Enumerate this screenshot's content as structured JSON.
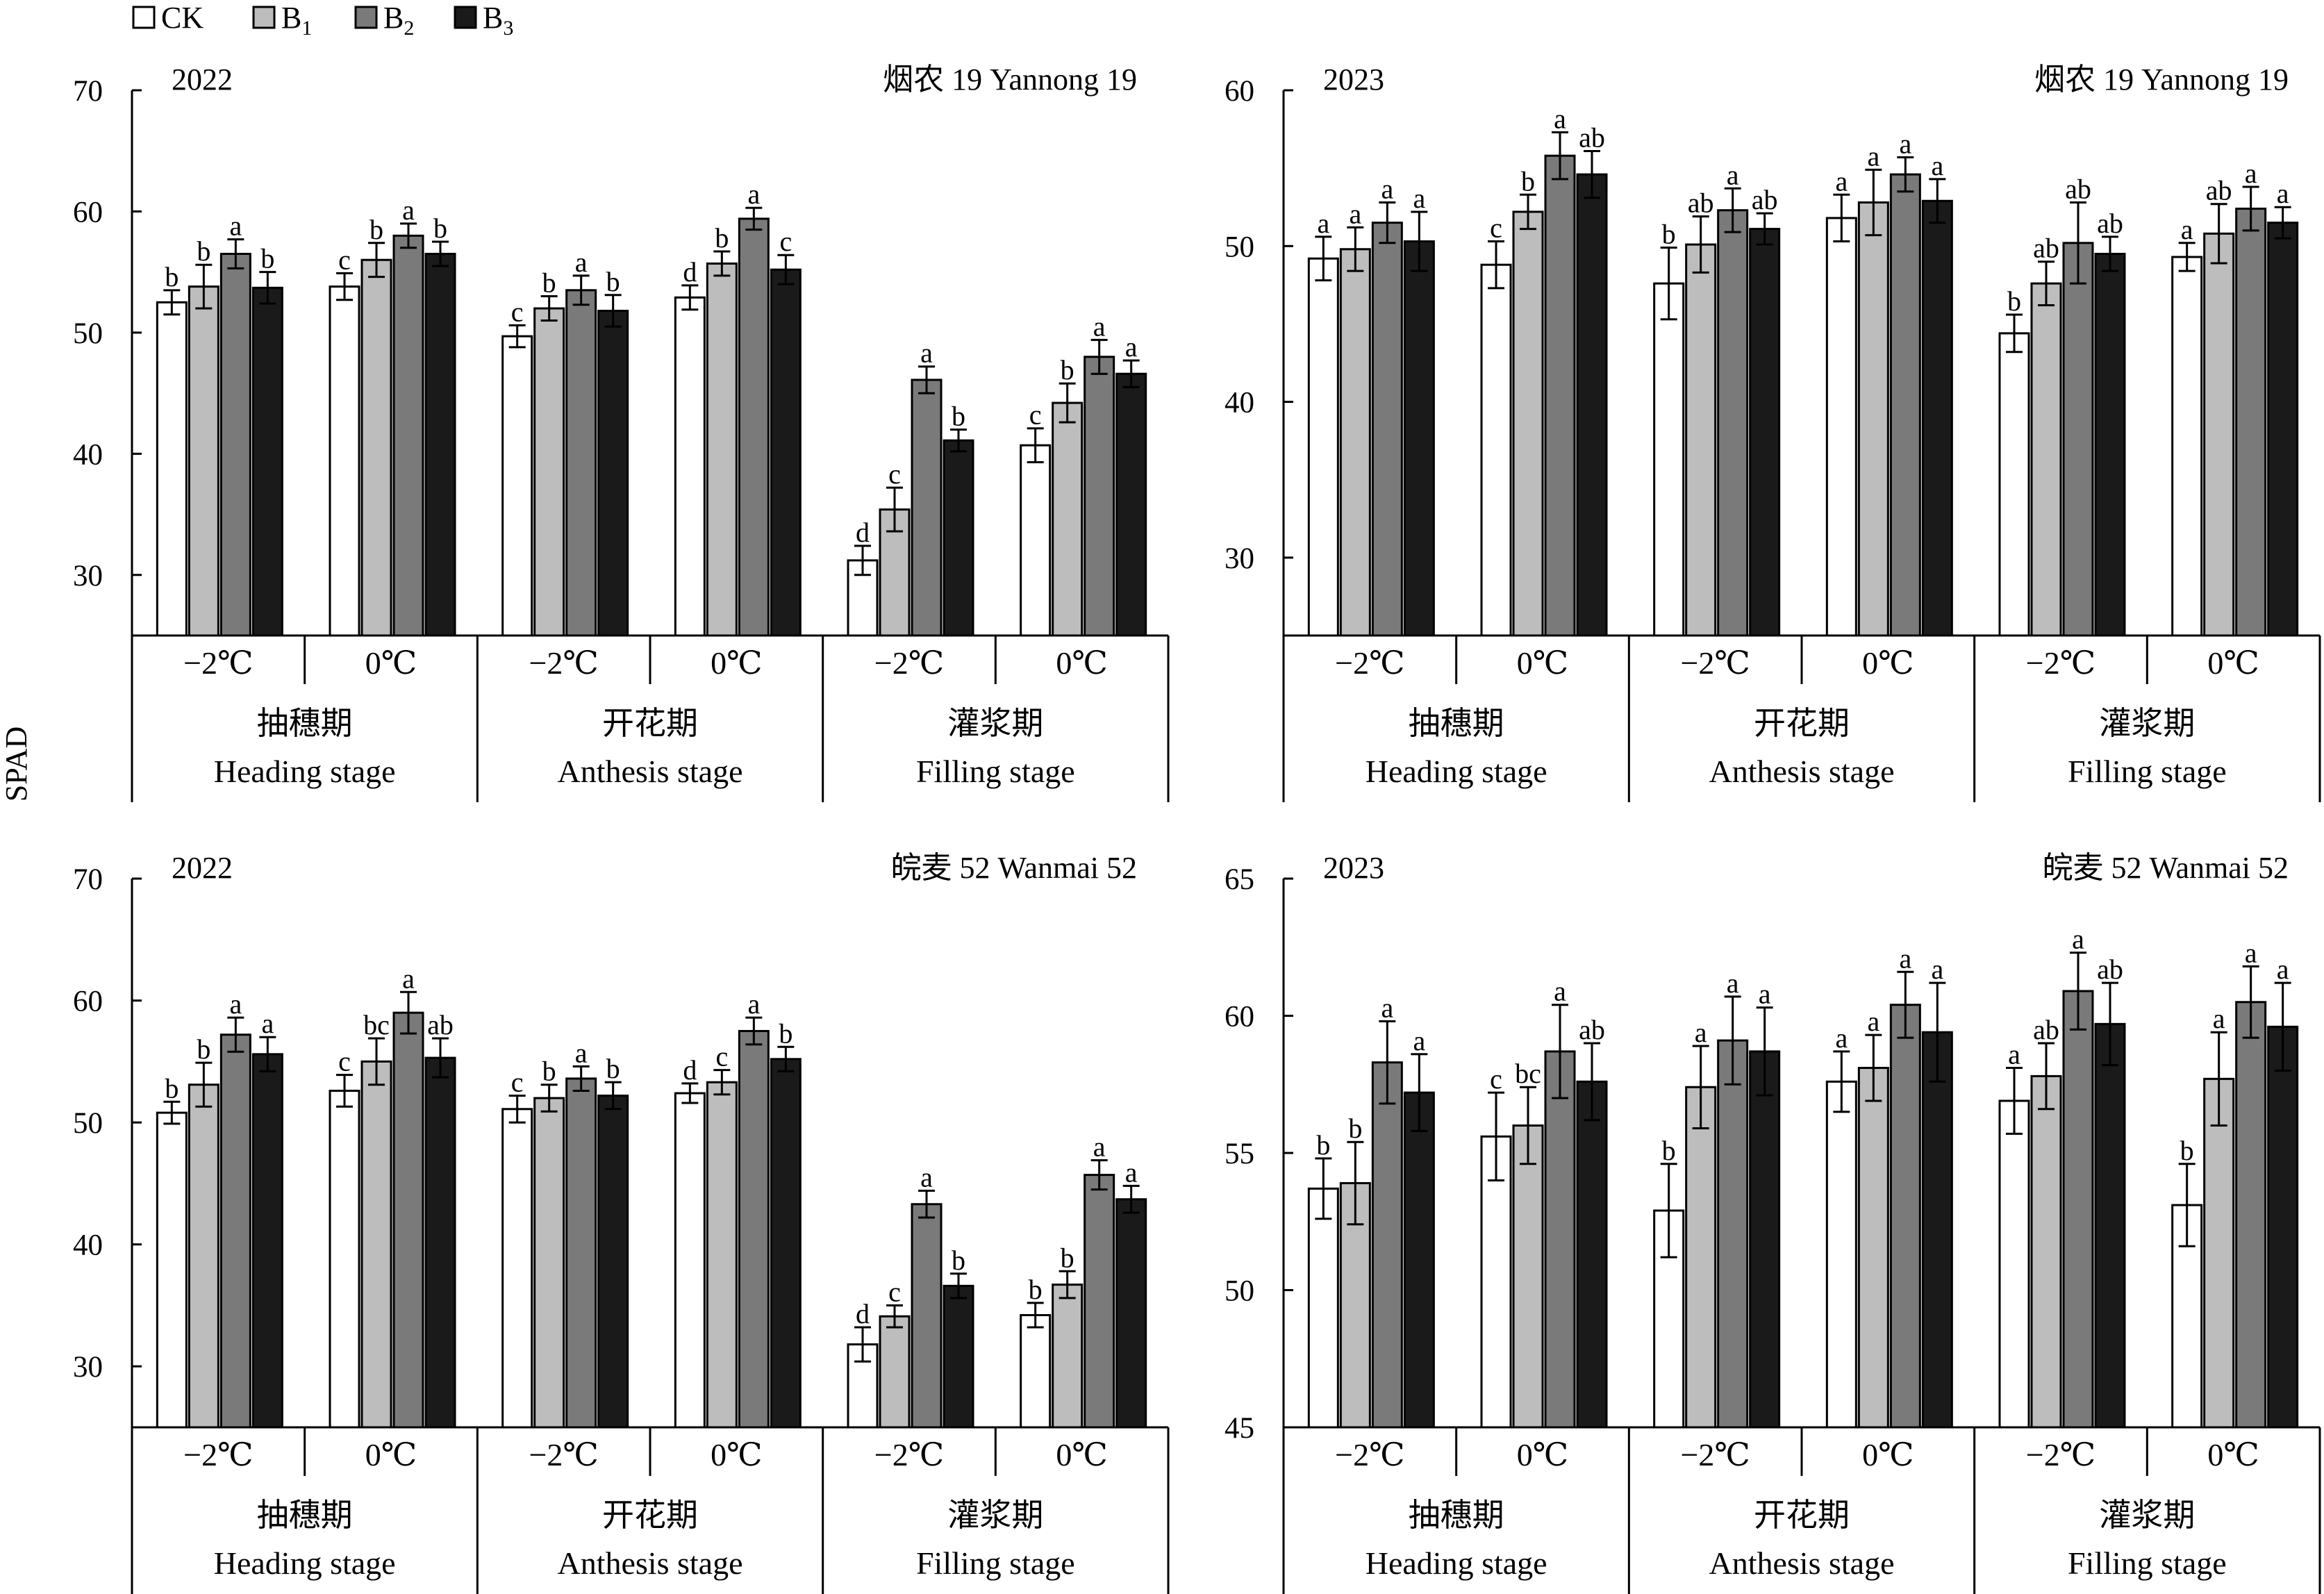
{
  "legend": [
    {
      "label": "CK",
      "sub": "",
      "color": "#ffffff"
    },
    {
      "label": "B",
      "sub": "1",
      "color": "#bdbdbd"
    },
    {
      "label": "B",
      "sub": "2",
      "color": "#7a7a7a"
    },
    {
      "label": "B",
      "sub": "3",
      "color": "#1a1a1a"
    }
  ],
  "y_axis_label": "SPAD",
  "temperatures": [
    "−2℃",
    "0℃"
  ],
  "stages": [
    {
      "zh": "抽穗期",
      "en": "Heading stage"
    },
    {
      "zh": "开花期",
      "en": "Anthesis stage"
    },
    {
      "zh": "灌浆期",
      "en": "Filling stage"
    }
  ],
  "chart_data": [
    {
      "type": "bar",
      "year": "2022",
      "variety": "烟农 19 Yannong 19",
      "ylim": [
        25,
        70
      ],
      "yticks": [
        30,
        40,
        50,
        60,
        70
      ],
      "series_names": [
        "CK",
        "B1",
        "B2",
        "B3"
      ],
      "groups": [
        {
          "values": [
            52.5,
            53.8,
            56.5,
            53.7
          ],
          "errors": [
            1.0,
            1.8,
            1.2,
            1.3
          ],
          "letters": [
            "b",
            "b",
            "a",
            "b"
          ]
        },
        {
          "values": [
            53.8,
            56.0,
            58.0,
            56.5
          ],
          "errors": [
            1.1,
            1.4,
            1.0,
            1.0
          ],
          "letters": [
            "c",
            "b",
            "a",
            "b"
          ]
        },
        {
          "values": [
            49.7,
            52.0,
            53.5,
            51.8
          ],
          "errors": [
            0.9,
            1.0,
            1.2,
            1.3
          ],
          "letters": [
            "c",
            "b",
            "a",
            "b"
          ]
        },
        {
          "values": [
            52.9,
            55.7,
            59.4,
            55.2
          ],
          "errors": [
            1.0,
            1.0,
            0.9,
            1.2
          ],
          "letters": [
            "d",
            "b",
            "a",
            "c"
          ]
        },
        {
          "values": [
            31.2,
            35.4,
            46.1,
            41.1
          ],
          "errors": [
            1.2,
            1.8,
            1.1,
            0.9
          ],
          "letters": [
            "d",
            "c",
            "a",
            "b"
          ]
        },
        {
          "values": [
            40.7,
            44.2,
            48.0,
            46.6
          ],
          "errors": [
            1.4,
            1.6,
            1.4,
            1.1
          ],
          "letters": [
            "c",
            "b",
            "a",
            "a"
          ]
        }
      ]
    },
    {
      "type": "bar",
      "year": "2023",
      "variety": "烟农 19 Yannong 19",
      "ylim": [
        25,
        60
      ],
      "yticks": [
        30,
        40,
        50,
        60
      ],
      "series_names": [
        "CK",
        "B1",
        "B2",
        "B3"
      ],
      "groups": [
        {
          "values": [
            49.2,
            49.8,
            51.5,
            50.3
          ],
          "errors": [
            1.4,
            1.4,
            1.3,
            1.9
          ],
          "letters": [
            "a",
            "a",
            "a",
            "a"
          ]
        },
        {
          "values": [
            48.8,
            52.2,
            55.8,
            54.6
          ],
          "errors": [
            1.5,
            1.1,
            1.5,
            1.5
          ],
          "letters": [
            "c",
            "b",
            "a",
            "ab"
          ]
        },
        {
          "values": [
            47.6,
            50.1,
            52.3,
            51.1
          ],
          "errors": [
            2.3,
            1.8,
            1.4,
            1.0
          ],
          "letters": [
            "b",
            "ab",
            "a",
            "ab"
          ]
        },
        {
          "values": [
            51.8,
            52.8,
            54.6,
            52.9
          ],
          "errors": [
            1.5,
            2.1,
            1.1,
            1.4
          ],
          "letters": [
            "a",
            "a",
            "a",
            "a"
          ]
        },
        {
          "values": [
            44.4,
            47.6,
            50.2,
            49.5
          ],
          "errors": [
            1.2,
            1.4,
            2.6,
            1.1
          ],
          "letters": [
            "b",
            "ab",
            "ab",
            "ab"
          ]
        },
        {
          "values": [
            49.3,
            50.8,
            52.4,
            51.5
          ],
          "errors": [
            0.9,
            1.9,
            1.4,
            1.0
          ],
          "letters": [
            "a",
            "ab",
            "a",
            "a"
          ]
        }
      ]
    },
    {
      "type": "bar",
      "year": "2022",
      "variety": "皖麦 52 Wanmai 52",
      "ylim": [
        25,
        70
      ],
      "yticks": [
        30,
        40,
        50,
        60,
        70
      ],
      "series_names": [
        "CK",
        "B1",
        "B2",
        "B3"
      ],
      "groups": [
        {
          "values": [
            50.8,
            53.1,
            57.2,
            55.6
          ],
          "errors": [
            0.9,
            1.8,
            1.4,
            1.4
          ],
          "letters": [
            "b",
            "b",
            "a",
            "a"
          ]
        },
        {
          "values": [
            52.6,
            55.0,
            59.0,
            55.3
          ],
          "errors": [
            1.3,
            1.9,
            1.7,
            1.6
          ],
          "letters": [
            "c",
            "bc",
            "a",
            "ab"
          ]
        },
        {
          "values": [
            51.1,
            52.0,
            53.6,
            52.2
          ],
          "errors": [
            1.1,
            1.1,
            1.0,
            1.1
          ],
          "letters": [
            "c",
            "b",
            "a",
            "b"
          ]
        },
        {
          "values": [
            52.4,
            53.3,
            57.5,
            55.2
          ],
          "errors": [
            0.8,
            1.0,
            1.1,
            1.0
          ],
          "letters": [
            "d",
            "c",
            "a",
            "b"
          ]
        },
        {
          "values": [
            31.8,
            34.1,
            43.3,
            36.6
          ],
          "errors": [
            1.4,
            0.9,
            1.1,
            1.0
          ],
          "letters": [
            "d",
            "c",
            "a",
            "b"
          ]
        },
        {
          "values": [
            34.2,
            36.7,
            45.7,
            43.7
          ],
          "errors": [
            1.0,
            1.1,
            1.2,
            1.1
          ],
          "letters": [
            "b",
            "b",
            "a",
            "a"
          ]
        }
      ]
    },
    {
      "type": "bar",
      "year": "2023",
      "variety": "皖麦 52 Wanmai 52",
      "ylim": [
        45,
        65
      ],
      "yticks": [
        45,
        50,
        55,
        60,
        65
      ],
      "series_names": [
        "CK",
        "B1",
        "B2",
        "B3"
      ],
      "groups": [
        {
          "values": [
            53.7,
            53.9,
            58.3,
            57.2
          ],
          "errors": [
            1.1,
            1.5,
            1.5,
            1.4
          ],
          "letters": [
            "b",
            "b",
            "a",
            "a"
          ]
        },
        {
          "values": [
            55.6,
            56.0,
            58.7,
            57.6
          ],
          "errors": [
            1.6,
            1.4,
            1.7,
            1.4
          ],
          "letters": [
            "c",
            "bc",
            "a",
            "ab"
          ]
        },
        {
          "values": [
            52.9,
            57.4,
            59.1,
            58.7
          ],
          "errors": [
            1.7,
            1.5,
            1.6,
            1.6
          ],
          "letters": [
            "b",
            "a",
            "a",
            "a"
          ]
        },
        {
          "values": [
            57.6,
            58.1,
            60.4,
            59.4
          ],
          "errors": [
            1.1,
            1.2,
            1.2,
            1.8
          ],
          "letters": [
            "a",
            "a",
            "a",
            "a"
          ]
        },
        {
          "values": [
            56.9,
            57.8,
            60.9,
            59.7
          ],
          "errors": [
            1.2,
            1.2,
            1.4,
            1.5
          ],
          "letters": [
            "a",
            "ab",
            "a",
            "ab"
          ]
        },
        {
          "values": [
            53.1,
            57.7,
            60.5,
            59.6
          ],
          "errors": [
            1.5,
            1.7,
            1.3,
            1.6
          ],
          "letters": [
            "b",
            "a",
            "a",
            "a"
          ]
        }
      ]
    }
  ]
}
